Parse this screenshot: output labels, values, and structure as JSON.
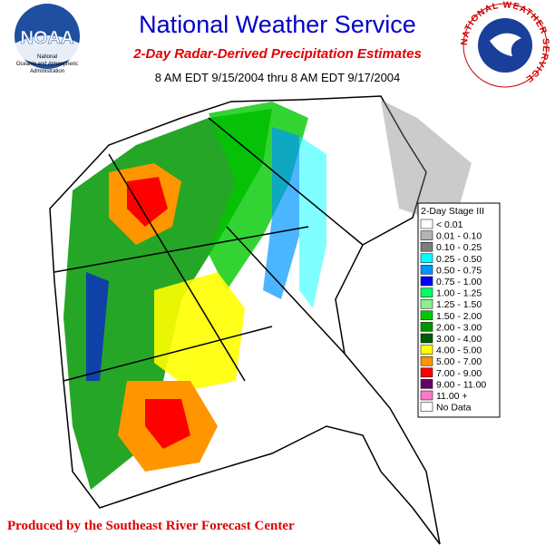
{
  "header": {
    "title": "National Weather Service",
    "subtitle": "2-Day Radar-Derived Precipitation Estimates",
    "period": "8 AM EDT 9/15/2004 thru 8 AM EDT 9/17/2004"
  },
  "noaa_logo": {
    "name": "NOAA",
    "caption": [
      "National",
      "Oceanic and Atmospheric",
      "Administration"
    ]
  },
  "nws_logo": {
    "ring_text": "NATIONAL WEATHER SERVICE"
  },
  "legend": {
    "title": "2-Day Stage III",
    "items": [
      {
        "label": "< 0.01",
        "color": "#ffffff"
      },
      {
        "label": "0.01 - 0.10",
        "color": "#b4b4b4"
      },
      {
        "label": "0.10 - 0.25",
        "color": "#7c7c7c"
      },
      {
        "label": "0.25 - 0.50",
        "color": "#00ffff"
      },
      {
        "label": "0.50 - 0.75",
        "color": "#0096ff"
      },
      {
        "label": "0.75 - 1.00",
        "color": "#0000ff"
      },
      {
        "label": "1.00 - 1.25",
        "color": "#00ff64"
      },
      {
        "label": "1.25 - 1.50",
        "color": "#8cf08c"
      },
      {
        "label": "1.50 - 2.00",
        "color": "#00c800"
      },
      {
        "label": "2.00 - 3.00",
        "color": "#009600"
      },
      {
        "label": "3.00 - 4.00",
        "color": "#005a00"
      },
      {
        "label": "4.00 - 5.00",
        "color": "#ffff00"
      },
      {
        "label": "5.00 - 7.00",
        "color": "#ff9600"
      },
      {
        "label": "7.00 - 9.00",
        "color": "#ff0000"
      },
      {
        "label": "9.00 - 11.00",
        "color": "#640064"
      },
      {
        "label": "11.00 +",
        "color": "#ff78c8"
      },
      {
        "label": "No Data",
        "color": "#ffffff"
      }
    ]
  },
  "footer": {
    "credit": "Produced by the Southeast River Forecast Center"
  }
}
